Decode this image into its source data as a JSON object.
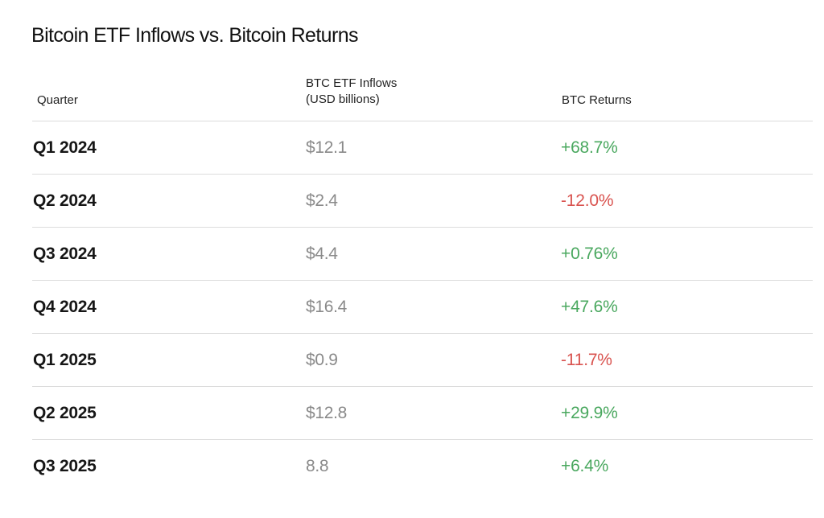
{
  "chart_data": {
    "type": "table",
    "title": "Bitcoin ETF Inflows vs. Bitcoin Returns",
    "columns": [
      {
        "label": "Quarter"
      },
      {
        "label_lines": [
          "BTC ETF Inflows",
          "(USD billions)"
        ]
      },
      {
        "label": "BTC Returns"
      }
    ],
    "rows": [
      {
        "quarter": "Q1 2024",
        "inflows": "$12.1",
        "returns": "+68.7%",
        "inflows_value": 12.1,
        "returns_value": 68.7
      },
      {
        "quarter": "Q2 2024",
        "inflows": "$2.4",
        "returns": "-12.0%",
        "inflows_value": 2.4,
        "returns_value": -12.0
      },
      {
        "quarter": "Q3 2024",
        "inflows": "$4.4",
        "returns": "+0.76%",
        "inflows_value": 4.4,
        "returns_value": 0.76
      },
      {
        "quarter": "Q4 2024",
        "inflows": "$16.4",
        "returns": "+47.6%",
        "inflows_value": 16.4,
        "returns_value": 47.6
      },
      {
        "quarter": "Q1 2025",
        "inflows": "$0.9",
        "returns": "-11.7%",
        "inflows_value": 0.9,
        "returns_value": -11.7
      },
      {
        "quarter": "Q2 2025",
        "inflows": "$12.8",
        "returns": "+29.9%",
        "inflows_value": 12.8,
        "returns_value": 29.9
      },
      {
        "quarter": "Q3 2025",
        "inflows": "8.8",
        "returns": "+6.4%",
        "inflows_value": 8.8,
        "returns_value": 6.4
      }
    ],
    "colors": {
      "positive": "#4aa85f",
      "negative": "#d9534f",
      "inflows_text": "#8a8a8a",
      "divider": "#dcdcdc"
    }
  }
}
